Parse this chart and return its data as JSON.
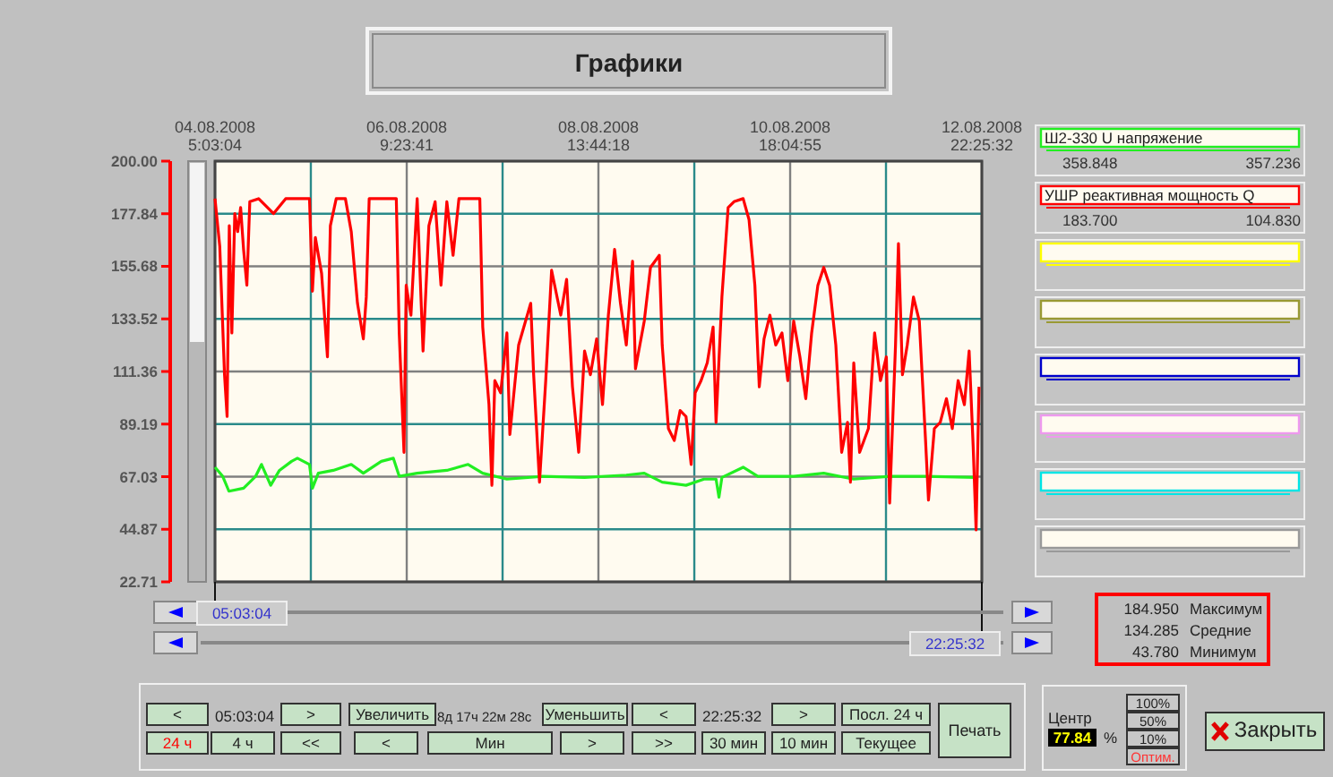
{
  "chart_data": {
    "type": "line",
    "title": "Графики",
    "xlim": [
      "2008-08-04T05:03",
      "2008-08-12T22:25"
    ],
    "xticks": [
      {
        "value": "2008-08-04T05:03",
        "label": "04.08.2008\n5:03:04"
      },
      {
        "value": "2008-08-05T07:13",
        "label": null
      },
      {
        "value": "2008-08-06T09:24",
        "label": "06.08.2008\n9:23:41"
      },
      {
        "value": "2008-08-07T11:34",
        "label": null
      },
      {
        "value": "2008-08-08T13:44",
        "label": "08.08.2008\n13:44:18"
      },
      {
        "value": "2008-08-09T15:55",
        "label": null
      },
      {
        "value": "2008-08-10T18:05",
        "label": "10.08.2008\n18:04:55"
      },
      {
        "value": "2008-08-11T20:15",
        "label": null
      },
      {
        "value": "2008-08-12T22:25",
        "label": "12.08.2008\n22:25:32"
      }
    ],
    "ylim": [
      22.71,
      200
    ],
    "yticks": [
      22.71,
      44.87,
      67.03,
      89.19,
      111.36,
      133.52,
      155.68,
      177.84,
      {
        "value": 200,
        "label": "200.00"
      }
    ],
    "grid": true,
    "legend": "right",
    "marker": "none",
    "line_style": "solid",
    "series": [
      {
        "name": "Ш2-330 U напряжение",
        "color": "#22ee22",
        "x": [
          "2008-08-04T05:03",
          "2008-08-04T07:09",
          "2008-08-04T08:51",
          "2008-08-04T12:51",
          "2008-08-04T16:09",
          "2008-08-04T17:45",
          "2008-08-04T20:15",
          "2008-08-04T22:39",
          "2008-08-05T01:57",
          "2008-08-05T03:33",
          "2008-08-05T06:51",
          "2008-08-05T07:39",
          "2008-08-05T09:15",
          "2008-08-05T13:21",
          "2008-08-05T18:15",
          "2008-08-05T21:33",
          "2008-08-06T02:27",
          "2008-08-06T05:45",
          "2008-08-06T07:21",
          "2008-08-06T12:15",
          "2008-08-06T20:21",
          "2008-08-07T02:09",
          "2008-08-07T06:09",
          "2008-08-07T12:45",
          "2008-08-07T22:33",
          "2008-08-08T09:57",
          "2008-08-08T21:21",
          "2008-08-09T02:15",
          "2008-08-09T07:09",
          "2008-08-09T13:39",
          "2008-08-09T18:33",
          "2008-08-09T21:51",
          "2008-08-09T22:39",
          "2008-08-09T23:27",
          "2008-08-10T05:15",
          "2008-08-10T09:15",
          "2008-08-10T19:03",
          "2008-08-11T03:15",
          "2008-08-11T11:27",
          "2008-08-11T21:15",
          "2008-08-12T07:03",
          "2008-08-12T20:51"
        ],
        "values": [
          71.0,
          67.2,
          60.9,
          62.2,
          67.2,
          72.2,
          63.4,
          69.7,
          73.5,
          74.8,
          72.2,
          62.2,
          68.5,
          69.7,
          72.2,
          68.5,
          73.5,
          74.8,
          67.2,
          68.5,
          69.7,
          72.2,
          68.5,
          66.0,
          67.2,
          66.7,
          67.7,
          68.5,
          64.7,
          63.4,
          66.0,
          66.0,
          58.4,
          66.7,
          71.0,
          67.2,
          67.2,
          68.5,
          66.0,
          67.2,
          67.2,
          66.7
        ]
      },
      {
        "name": "УШР реактивная мощность Q",
        "color": "#ff0000",
        "x": [
          "2008-08-04T05:03",
          "2008-08-04T06:21",
          "2008-08-04T07:39",
          "2008-08-04T08:21",
          "2008-08-04T08:57",
          "2008-08-04T09:39",
          "2008-08-04T10:27",
          "2008-08-04T11:15",
          "2008-08-04T12:03",
          "2008-08-04T12:51",
          "2008-08-04T13:45",
          "2008-08-04T14:33",
          "2008-08-04T16:57",
          "2008-08-04T21:03",
          "2008-08-05T00:21",
          "2008-08-05T06:51",
          "2008-08-05T07:39",
          "2008-08-05T08:27",
          "2008-08-05T10:09",
          "2008-08-05T11:45",
          "2008-08-05T12:33",
          "2008-08-05T14:09",
          "2008-08-05T16:39",
          "2008-08-05T18:15",
          "2008-08-05T19:57",
          "2008-08-05T21:33",
          "2008-08-05T22:21",
          "2008-08-05T23:09",
          "2008-08-06T06:33",
          "2008-08-06T07:21",
          "2008-08-06T08:39",
          "2008-08-06T09:15",
          "2008-08-06T10:33",
          "2008-08-06T12:15",
          "2008-08-06T13:51",
          "2008-08-06T15:27",
          "2008-08-06T17:09",
          "2008-08-06T18:45",
          "2008-08-06T20:21",
          "2008-08-06T22:03",
          "2008-08-06T23:39",
          "2008-08-07T05:21",
          "2008-08-07T06:09",
          "2008-08-07T07:51",
          "2008-08-07T08:39",
          "2008-08-07T09:27",
          "2008-08-07T11:03",
          "2008-08-07T12:45",
          "2008-08-07T13:33",
          "2008-08-07T15:57",
          "2008-08-07T19:15",
          "2008-08-07T20:03",
          "2008-08-07T21:39",
          "2008-08-07T23:21",
          "2008-08-08T00:57",
          "2008-08-08T03:27",
          "2008-08-08T05:03",
          "2008-08-08T06:39",
          "2008-08-08T08:21",
          "2008-08-08T09:57",
          "2008-08-08T11:33",
          "2008-08-08T13:15",
          "2008-08-08T14:51",
          "2008-08-08T16:27",
          "2008-08-08T18:09",
          "2008-08-08T19:45",
          "2008-08-08T21:21",
          "2008-08-08T23:03",
          "2008-08-08T23:51",
          "2008-08-09T02:15",
          "2008-08-09T03:57",
          "2008-08-09T06:21",
          "2008-08-09T07:09",
          "2008-08-09T08:51",
          "2008-08-09T10:27",
          "2008-08-09T12:03",
          "2008-08-09T13:39",
          "2008-08-09T15:03",
          "2008-08-09T16:09",
          "2008-08-09T17:45",
          "2008-08-09T19:27",
          "2008-08-09T21:03",
          "2008-08-09T21:51",
          "2008-08-09T23:27",
          "2008-08-10T01:09",
          "2008-08-10T02:45",
          "2008-08-10T05:15",
          "2008-08-10T06:51",
          "2008-08-10T08:27",
          "2008-08-10T09:39",
          "2008-08-10T10:57",
          "2008-08-10T12:33",
          "2008-08-10T14:09",
          "2008-08-10T15:51",
          "2008-08-10T17:27",
          "2008-08-10T19:03",
          "2008-08-10T20:45",
          "2008-08-10T22:21",
          "2008-08-10T23:57",
          "2008-08-11T01:39",
          "2008-08-11T03:15",
          "2008-08-11T04:51",
          "2008-08-11T06:33",
          "2008-08-11T08:09",
          "2008-08-11T09:45",
          "2008-08-11T10:33",
          "2008-08-11T11:27",
          "2008-08-11T13:03",
          "2008-08-11T15:27",
          "2008-08-11T17:09",
          "2008-08-11T18:45",
          "2008-08-11T20:21",
          "2008-08-11T21:15",
          "2008-08-11T22:51",
          "2008-08-11T23:39",
          "2008-08-12T00:45",
          "2008-08-12T02:03",
          "2008-08-12T03:45",
          "2008-08-12T05:21",
          "2008-08-12T07:03",
          "2008-08-12T07:51",
          "2008-08-12T09:27",
          "2008-08-12T11:03",
          "2008-08-12T12:45",
          "2008-08-12T14:21",
          "2008-08-12T15:57",
          "2008-08-12T17:39",
          "2008-08-12T18:57",
          "2008-08-12T20:03",
          "2008-08-12T20:51",
          "2008-08-12T21:39"
        ],
        "values": [
          184.2,
          164.0,
          110.0,
          92.4,
          172.8,
          127.6,
          177.9,
          170.3,
          180.4,
          162.8,
          147.7,
          182.9,
          184.2,
          177.9,
          184.2,
          184.2,
          145.2,
          167.8,
          152.7,
          117.5,
          172.8,
          184.2,
          184.2,
          170.3,
          140.1,
          125.1,
          142.7,
          184.2,
          184.2,
          127.6,
          77.3,
          147.7,
          135.1,
          184.2,
          120.0,
          172.8,
          182.9,
          147.7,
          182.9,
          160.3,
          184.2,
          184.2,
          130.1,
          97.4,
          63.4,
          107.5,
          102.4,
          127.6,
          84.8,
          122.5,
          140.1,
          110.0,
          64.7,
          107.5,
          154.0,
          135.1,
          150.2,
          104.9,
          77.3,
          120.0,
          110.0,
          125.1,
          97.4,
          135.1,
          162.8,
          140.1,
          122.5,
          157.8,
          112.5,
          132.6,
          155.2,
          160.3,
          122.5,
          87.3,
          82.3,
          94.9,
          92.4,
          72.2,
          102.4,
          107.5,
          115.0,
          130.1,
          89.9,
          142.7,
          180.4,
          182.9,
          184.2,
          175.4,
          147.7,
          104.9,
          125.1,
          135.1,
          122.5,
          127.6,
          107.5,
          132.6,
          117.5,
          99.9,
          127.6,
          147.7,
          155.2,
          147.7,
          122.5,
          77.3,
          89.9,
          64.7,
          115.0,
          77.3,
          87.3,
          127.6,
          107.5,
          117.5,
          55.9,
          122.5,
          165.3,
          110.0,
          122.5,
          142.7,
          132.6,
          82.3,
          57.2,
          87.3,
          89.9,
          99.9,
          87.3,
          107.5,
          97.4,
          120.0,
          79.8,
          44.6,
          104.9
        ]
      }
    ],
    "annotations": [
      "05:03:04",
      "22:25:32",
      "184.950",
      "Максимум",
      "134.285",
      "Средние",
      "43.780",
      "Минимум",
      "<",
      "05:03:04",
      ">",
      "Увеличить",
      "8д 17ч 22м 28с",
      "Уменьшить",
      "<",
      "22:25:32",
      ">",
      "Посл. 24 ч",
      "24 ч",
      "4 ч",
      "<<",
      "<",
      "Мин",
      ">",
      ">>",
      "30 мин",
      "10 мин",
      "Текущее",
      "Печать",
      "Центр",
      "77.84",
      "%",
      "100%",
      "50%",
      "10%",
      "Оптим.",
      "Закрыть",
      "358.848",
      "357.236",
      "183.700",
      "104.830"
    ]
  }
}
